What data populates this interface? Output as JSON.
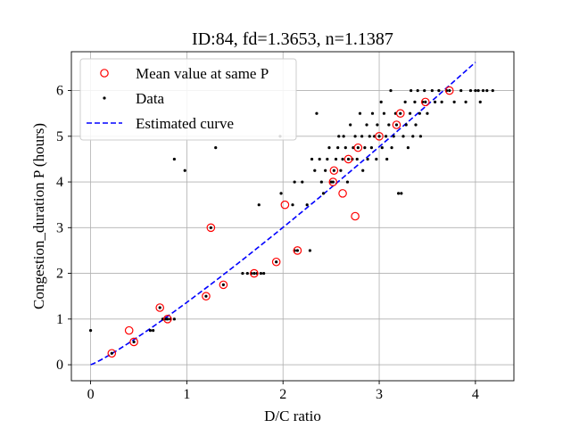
{
  "chart_data": {
    "type": "scatter",
    "title": "ID:84, fd=1.3653, n=1.1387",
    "xlabel": "D/C ratio",
    "ylabel": "Congestion_duration P (hours)",
    "xlim": [
      -0.2,
      4.4
    ],
    "ylim": [
      -0.35,
      6.85
    ],
    "xticks": [
      0,
      1,
      2,
      3,
      4
    ],
    "yticks": [
      0,
      1,
      2,
      3,
      4,
      5,
      6
    ],
    "grid": true,
    "legend_position": "top-left",
    "legend": [
      {
        "label": "Mean value at same P",
        "marker": "open-circle",
        "color": "#ff0000"
      },
      {
        "label": "Data",
        "marker": "dot",
        "color": "#000000"
      },
      {
        "label": "Estimated curve",
        "marker": "dashed-line",
        "color": "#0000ff"
      }
    ],
    "series": [
      {
        "name": "Mean value at same P",
        "points": [
          [
            0.22,
            0.25
          ],
          [
            0.4,
            0.75
          ],
          [
            0.45,
            0.5
          ],
          [
            0.72,
            1.25
          ],
          [
            0.8,
            1.0
          ],
          [
            1.2,
            1.5
          ],
          [
            1.25,
            3.0
          ],
          [
            1.38,
            1.75
          ],
          [
            1.7,
            2.0
          ],
          [
            1.93,
            2.25
          ],
          [
            2.02,
            3.5
          ],
          [
            2.15,
            2.5
          ],
          [
            2.52,
            4.0
          ],
          [
            2.53,
            4.25
          ],
          [
            2.62,
            3.75
          ],
          [
            2.68,
            4.5
          ],
          [
            2.75,
            3.25
          ],
          [
            2.78,
            4.75
          ],
          [
            3.0,
            5.0
          ],
          [
            3.18,
            5.25
          ],
          [
            3.22,
            5.5
          ],
          [
            3.48,
            5.75
          ],
          [
            3.73,
            6.0
          ]
        ]
      },
      {
        "name": "Data",
        "points": [
          [
            0.0,
            0.75
          ],
          [
            0.22,
            0.25
          ],
          [
            0.45,
            0.5
          ],
          [
            0.62,
            0.75
          ],
          [
            0.65,
            0.75
          ],
          [
            0.72,
            1.25
          ],
          [
            0.75,
            1.0
          ],
          [
            0.78,
            1.0
          ],
          [
            0.8,
            1.0
          ],
          [
            0.83,
            1.0
          ],
          [
            0.87,
            1.0
          ],
          [
            0.87,
            4.5
          ],
          [
            0.98,
            4.25
          ],
          [
            1.2,
            1.5
          ],
          [
            1.25,
            3.0
          ],
          [
            1.3,
            4.75
          ],
          [
            1.38,
            1.75
          ],
          [
            1.58,
            2.0
          ],
          [
            1.63,
            2.0
          ],
          [
            1.67,
            2.0
          ],
          [
            1.7,
            2.0
          ],
          [
            1.73,
            2.0
          ],
          [
            1.77,
            2.0
          ],
          [
            1.8,
            2.0
          ],
          [
            1.75,
            3.5
          ],
          [
            1.93,
            2.25
          ],
          [
            1.97,
            5.0
          ],
          [
            1.98,
            3.75
          ],
          [
            2.1,
            3.5
          ],
          [
            2.12,
            4.0
          ],
          [
            2.15,
            2.5
          ],
          [
            2.12,
            2.5
          ],
          [
            2.2,
            4.0
          ],
          [
            2.25,
            3.5
          ],
          [
            2.28,
            2.5
          ],
          [
            2.3,
            4.5
          ],
          [
            2.33,
            4.25
          ],
          [
            2.35,
            5.5
          ],
          [
            2.38,
            4.5
          ],
          [
            2.4,
            4.0
          ],
          [
            2.42,
            3.75
          ],
          [
            2.44,
            4.25
          ],
          [
            2.46,
            4.5
          ],
          [
            2.48,
            4.75
          ],
          [
            2.5,
            4.0
          ],
          [
            2.52,
            4.0
          ],
          [
            2.53,
            4.25
          ],
          [
            2.55,
            4.5
          ],
          [
            2.57,
            4.75
          ],
          [
            2.58,
            5.0
          ],
          [
            2.6,
            4.25
          ],
          [
            2.62,
            4.5
          ],
          [
            2.63,
            5.0
          ],
          [
            2.65,
            4.75
          ],
          [
            2.67,
            4.0
          ],
          [
            2.68,
            4.5
          ],
          [
            2.7,
            5.25
          ],
          [
            2.72,
            4.5
          ],
          [
            2.73,
            4.75
          ],
          [
            2.75,
            5.0
          ],
          [
            2.77,
            4.5
          ],
          [
            2.78,
            4.75
          ],
          [
            2.8,
            5.5
          ],
          [
            2.82,
            5.0
          ],
          [
            2.83,
            4.25
          ],
          [
            2.85,
            4.75
          ],
          [
            2.87,
            5.25
          ],
          [
            2.88,
            4.5
          ],
          [
            2.9,
            5.0
          ],
          [
            2.92,
            4.75
          ],
          [
            2.93,
            5.5
          ],
          [
            2.95,
            5.0
          ],
          [
            2.97,
            4.5
          ],
          [
            2.98,
            5.25
          ],
          [
            3.0,
            5.0
          ],
          [
            3.02,
            5.75
          ],
          [
            3.03,
            4.75
          ],
          [
            3.05,
            5.5
          ],
          [
            3.07,
            5.0
          ],
          [
            3.08,
            4.5
          ],
          [
            3.1,
            5.25
          ],
          [
            3.12,
            6.0
          ],
          [
            3.13,
            4.75
          ],
          [
            3.15,
            5.0
          ],
          [
            3.17,
            5.5
          ],
          [
            3.18,
            5.25
          ],
          [
            3.2,
            3.75
          ],
          [
            3.22,
            5.5
          ],
          [
            3.23,
            3.75
          ],
          [
            3.25,
            5.0
          ],
          [
            3.27,
            5.75
          ],
          [
            3.28,
            5.25
          ],
          [
            3.3,
            4.75
          ],
          [
            3.32,
            5.5
          ],
          [
            3.33,
            6.0
          ],
          [
            3.35,
            5.0
          ],
          [
            3.37,
            5.75
          ],
          [
            3.38,
            5.25
          ],
          [
            3.4,
            6.0
          ],
          [
            3.42,
            5.5
          ],
          [
            3.43,
            5.0
          ],
          [
            3.45,
            5.75
          ],
          [
            3.47,
            6.0
          ],
          [
            3.48,
            5.75
          ],
          [
            3.5,
            5.5
          ],
          [
            3.55,
            6.0
          ],
          [
            3.58,
            5.75
          ],
          [
            3.62,
            6.0
          ],
          [
            3.65,
            5.75
          ],
          [
            3.7,
            6.0
          ],
          [
            3.73,
            6.0
          ],
          [
            3.78,
            5.75
          ],
          [
            3.85,
            6.0
          ],
          [
            3.9,
            5.75
          ],
          [
            3.95,
            6.0
          ],
          [
            4.0,
            6.0
          ],
          [
            4.03,
            6.0
          ],
          [
            4.05,
            5.75
          ],
          [
            4.08,
            6.0
          ],
          [
            4.12,
            6.0
          ],
          [
            4.18,
            6.0
          ]
        ]
      },
      {
        "name": "Estimated curve",
        "function": "P = 1.3653 * x^1.1387",
        "x_range": [
          0,
          4.0
        ]
      }
    ]
  }
}
